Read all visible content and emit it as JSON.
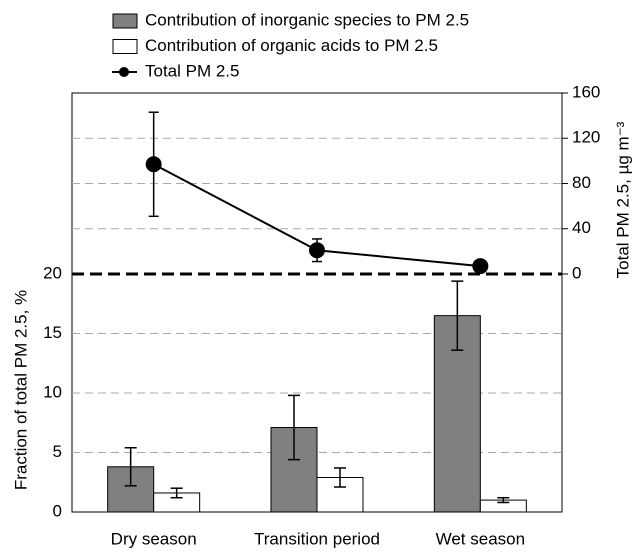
{
  "chart_data": {
    "type": "bar",
    "categories": [
      "Dry season",
      "Transition period",
      "Wet season"
    ],
    "y_label": "Fraction of total PM 2.5, %",
    "y2_label": "Total PM 2.5, µg m⁻³",
    "ylim": [
      0,
      20
    ],
    "yticks": [
      0,
      5,
      10,
      15,
      20
    ],
    "y2lim": [
      0,
      160
    ],
    "y2ticks": [
      0,
      40,
      80,
      120,
      160
    ],
    "grid": true,
    "legend": "top-left",
    "series": [
      {
        "name": "Contribution of inorganic species to PM 2.5",
        "type": "bar",
        "color": "#808080",
        "values": [
          3.8,
          7.1,
          16.5
        ],
        "errors": [
          1.6,
          2.7,
          2.9
        ]
      },
      {
        "name": "Contribution of organic acids to PM 2.5",
        "type": "bar",
        "color": "#ffffff",
        "values": [
          1.6,
          2.9,
          1.0
        ],
        "errors": [
          0.4,
          0.8,
          0.2
        ]
      },
      {
        "name": "Total PM 2.5",
        "type": "line",
        "axis": "y2",
        "color": "#000000",
        "values": [
          97,
          21,
          7
        ],
        "errors": [
          46,
          10,
          2
        ]
      }
    ]
  }
}
